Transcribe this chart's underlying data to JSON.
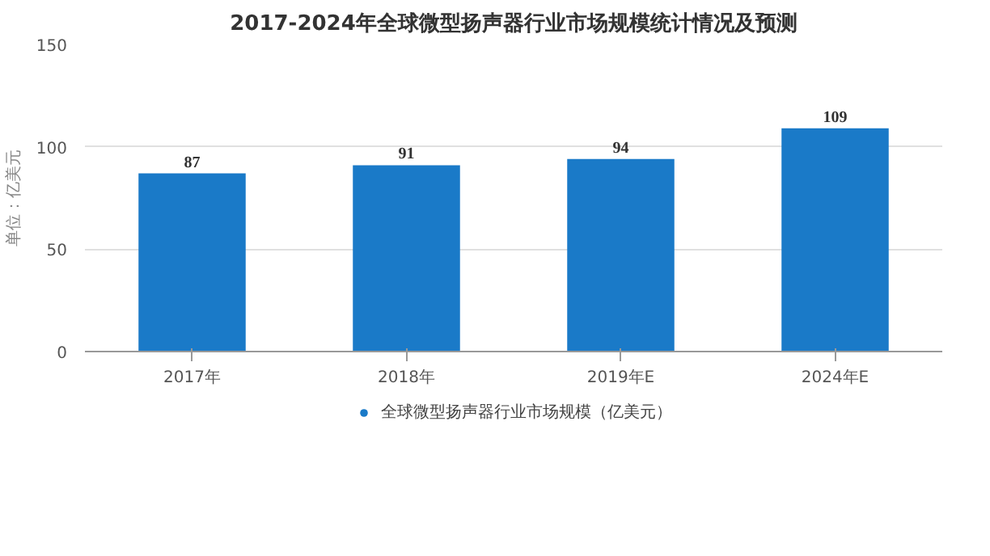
{
  "chart_data": {
    "type": "bar",
    "title": "2017-2024年全球微型扬声器行业市场规模统计情况及预测",
    "categories": [
      "2017年",
      "2018年",
      "2019年E",
      "2024年E"
    ],
    "series": [
      {
        "name": "全球微型扬声器行业市场规模（亿美元）",
        "color": "#1a7ac8",
        "values": [
          87,
          91,
          94,
          109
        ]
      }
    ],
    "ylabel": "单位：亿美元",
    "ylim": [
      0,
      150
    ],
    "yticks": [
      0,
      50,
      100,
      150
    ],
    "grid": "y",
    "legend": "bottom",
    "data_labels": true
  }
}
